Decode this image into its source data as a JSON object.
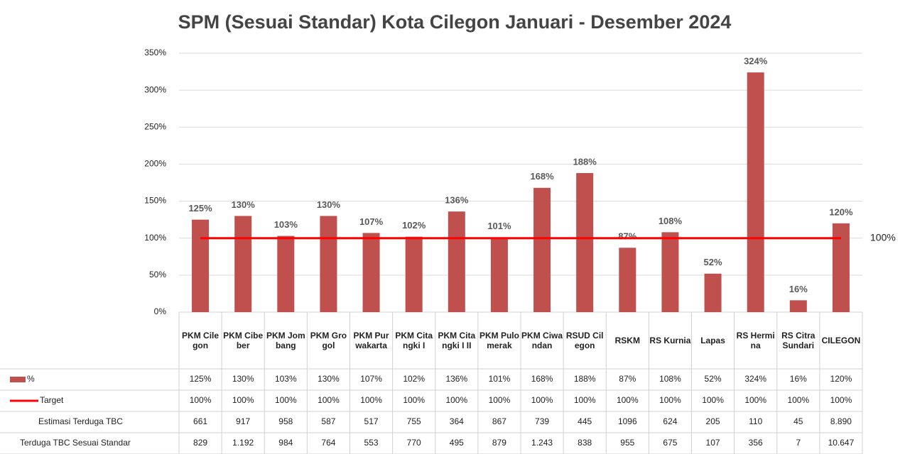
{
  "chart_data": {
    "type": "bar",
    "title": "SPM (Sesuai Standar) Kota Cilegon Januari - Desember 2024",
    "categories": [
      "PKM Cilegon",
      "PKM Cibeber",
      "PKM Jombang",
      "PKM Grogol",
      "PKM Purwakarta",
      "PKM Citangki I",
      "PKM Citangki I II",
      "PKM Pulomerak",
      "PKM Ciwandan",
      "RSUD Cilegon",
      "RSKM",
      "RS Kurnia",
      "Lapas",
      "RS Hermina",
      "RS Citra Sundari",
      "CILEGON"
    ],
    "series": [
      {
        "name": "%",
        "color": "#c0504d",
        "values": [
          125,
          130,
          103,
          130,
          107,
          102,
          136,
          101,
          168,
          188,
          87,
          108,
          52,
          324,
          16,
          120
        ],
        "value_labels": [
          "125%",
          "130%",
          "103%",
          "130%",
          "107%",
          "102%",
          "136%",
          "101%",
          "168%",
          "188%",
          "87%",
          "108%",
          "52%",
          "324%",
          "16%",
          "120%"
        ]
      },
      {
        "name": "Target",
        "color": "#ff0000",
        "values": [
          100,
          100,
          100,
          100,
          100,
          100,
          100,
          100,
          100,
          100,
          100,
          100,
          100,
          100,
          100,
          100
        ],
        "value_labels": [
          "100%",
          "100%",
          "100%",
          "100%",
          "100%",
          "100%",
          "100%",
          "100%",
          "100%",
          "100%",
          "100%",
          "100%",
          "100%",
          "100%",
          "100%",
          "100%"
        ]
      }
    ],
    "target_annotation": "100%",
    "table_rows": [
      {
        "name": "Estimasi Terduga TBC",
        "values": [
          "661",
          "917",
          "958",
          "587",
          "517",
          "755",
          "364",
          "867",
          "739",
          "445",
          "1096",
          "624",
          "205",
          "110",
          "45",
          "8.890"
        ]
      },
      {
        "name": "Terduga TBC Sesuai Standar",
        "values": [
          "829",
          "1.192",
          "984",
          "764",
          "553",
          "770",
          "495",
          "879",
          "1.243",
          "838",
          "955",
          "675",
          "107",
          "356",
          "7",
          "10.647"
        ]
      }
    ],
    "ylim": [
      0,
      350
    ],
    "yticks": [
      {
        "value": 0,
        "label": "0%"
      },
      {
        "value": 50,
        "label": "50%"
      },
      {
        "value": 100,
        "label": "100%"
      },
      {
        "value": 150,
        "label": "150%"
      },
      {
        "value": 200,
        "label": "200%"
      },
      {
        "value": 250,
        "label": "250%"
      },
      {
        "value": 300,
        "label": "300%"
      },
      {
        "value": 350,
        "label": "350%"
      }
    ],
    "grid": true
  }
}
